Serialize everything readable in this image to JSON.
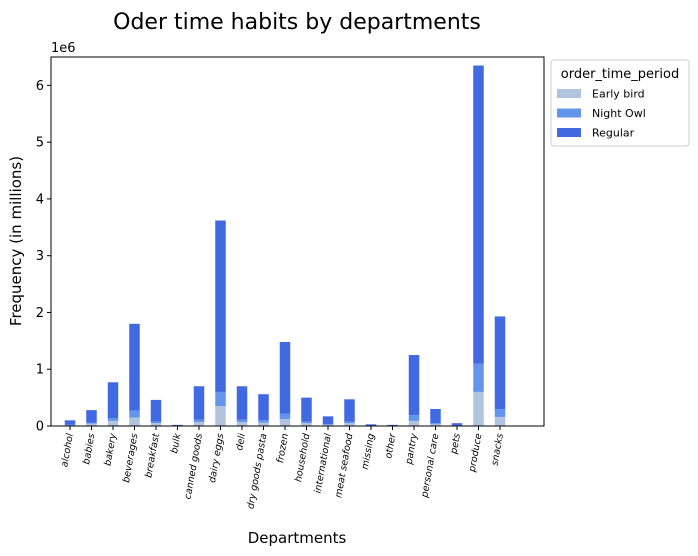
{
  "chart_data": {
    "type": "bar",
    "stacked": true,
    "title": "Oder time habits by departments",
    "xlabel": "Departments",
    "ylabel": "Frequency (in millions)",
    "y_offset_label": "1e6",
    "ylim": [
      0,
      6.5
    ],
    "yticks": [
      "0",
      "1",
      "2",
      "3",
      "4",
      "5",
      "6"
    ],
    "categories": [
      "alcohol",
      "babies",
      "bakery",
      "beverages",
      "breakfast",
      "bulk",
      "canned goods",
      "dairy eggs",
      "deli",
      "dry goods pasta",
      "frozen",
      "household",
      "international",
      "meat seafood",
      "missing",
      "other",
      "pantry",
      "personal care",
      "pets",
      "produce",
      "snacks"
    ],
    "legend": {
      "title": "order_time_period",
      "position": "outside-top-right"
    },
    "series": [
      {
        "name": "Early bird",
        "color": "#b0c4de",
        "values": [
          0.01,
          0.04,
          0.09,
          0.15,
          0.05,
          0.003,
          0.07,
          0.35,
          0.07,
          0.06,
          0.12,
          0.05,
          0.02,
          0.05,
          0.004,
          0.002,
          0.09,
          0.03,
          0.006,
          0.6,
          0.16
        ]
      },
      {
        "name": "Night Owl",
        "color": "#6495ed",
        "values": [
          0.01,
          0.02,
          0.05,
          0.12,
          0.03,
          0.002,
          0.04,
          0.25,
          0.04,
          0.04,
          0.1,
          0.03,
          0.01,
          0.03,
          0.003,
          0.001,
          0.1,
          0.02,
          0.004,
          0.5,
          0.14
        ]
      },
      {
        "name": "Regular",
        "color": "#4169e1",
        "values": [
          0.08,
          0.22,
          0.63,
          1.53,
          0.38,
          0.015,
          0.59,
          3.02,
          0.59,
          0.46,
          1.26,
          0.42,
          0.14,
          0.39,
          0.023,
          0.017,
          1.06,
          0.25,
          0.04,
          5.25,
          1.63
        ]
      }
    ]
  }
}
